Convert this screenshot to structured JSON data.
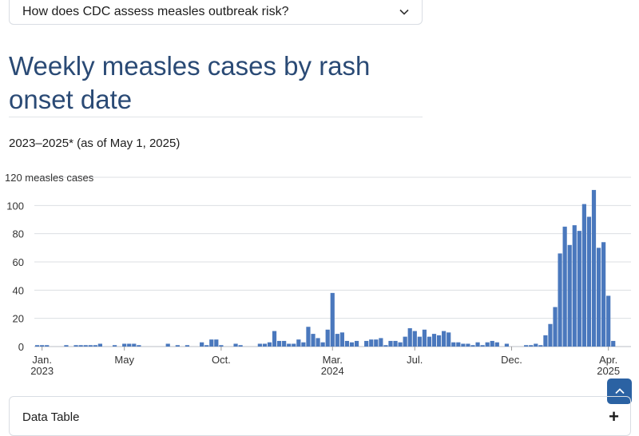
{
  "faq": {
    "question": "How does CDC assess measles outbreak risk?",
    "expand_icon": "chevron-down-icon"
  },
  "heading": {
    "title": "Weekly measles cases by rash onset date"
  },
  "subtitle": "2023–2025* (as of May 1, 2025)",
  "scroll_top": {
    "icon": "chevron-up-icon",
    "color": "#2b62a3"
  },
  "data_table": {
    "label": "Data Table",
    "toggle_icon": "plus-icon"
  },
  "colors": {
    "bar": "#4a78bd",
    "title": "#2a4a75",
    "grid": "#dcdfe3"
  },
  "chart_data": {
    "type": "bar",
    "ylabel": "measles cases",
    "ylim": [
      0,
      120
    ],
    "yticks": [
      0,
      20,
      40,
      60,
      80,
      100,
      120
    ],
    "xticks": [
      {
        "index": 1,
        "label": [
          "Jan.",
          "2023"
        ]
      },
      {
        "index": 18,
        "label": [
          "May",
          ""
        ]
      },
      {
        "index": 38,
        "label": [
          "Oct.",
          ""
        ]
      },
      {
        "index": 61,
        "label": [
          "Mar.",
          "2024"
        ]
      },
      {
        "index": 78,
        "label": [
          "Jul.",
          ""
        ]
      },
      {
        "index": 98,
        "label": [
          "Dec.",
          ""
        ]
      },
      {
        "index": 118,
        "label": [
          "Apr.",
          "2025"
        ]
      }
    ],
    "values": [
      1,
      1,
      1,
      0,
      0,
      0,
      1,
      0,
      1,
      1,
      1,
      1,
      1,
      2,
      0,
      0,
      1,
      0,
      2,
      2,
      2,
      1,
      0,
      0,
      0,
      0,
      0,
      2,
      0,
      1,
      0,
      1,
      0,
      0,
      3,
      1,
      5,
      5,
      1,
      0,
      0,
      2,
      1,
      0,
      0,
      0,
      2,
      2,
      3,
      11,
      4,
      4,
      2,
      2,
      5,
      3,
      14,
      9,
      6,
      3,
      12,
      38,
      9,
      10,
      4,
      3,
      4,
      0,
      4,
      5,
      5,
      6,
      1,
      4,
      4,
      3,
      7,
      13,
      11,
      7,
      12,
      7,
      9,
      8,
      11,
      10,
      3,
      3,
      2,
      2,
      1,
      3,
      1,
      3,
      4,
      3,
      0,
      2,
      0,
      0,
      0,
      1,
      1,
      2,
      1,
      8,
      16,
      28,
      66,
      85,
      72,
      86,
      82,
      101,
      92,
      111,
      70,
      74,
      36,
      4
    ]
  }
}
